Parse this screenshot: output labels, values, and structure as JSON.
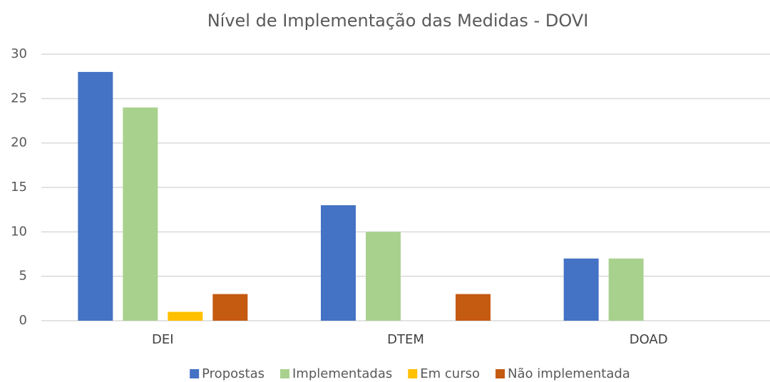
{
  "chart_data": {
    "type": "bar",
    "title": "Nível de Implementação das Medidas - DOVI",
    "categories": [
      "DEI",
      "DTEM",
      "DOAD"
    ],
    "series": [
      {
        "name": "Propostas",
        "color": "#4472c4",
        "values": [
          28,
          13,
          7
        ]
      },
      {
        "name": "Implementadas",
        "color": "#a9d18e",
        "values": [
          24,
          10,
          7
        ]
      },
      {
        "name": "Em curso",
        "color": "#ffc000",
        "values": [
          1,
          0,
          0
        ]
      },
      {
        "name": "Não implementada",
        "color": "#c55a11",
        "values": [
          3,
          3,
          0
        ]
      }
    ],
    "ylim": [
      0,
      30
    ],
    "yticks": [
      0,
      5,
      10,
      15,
      20,
      25,
      30
    ],
    "grid": true,
    "legend": "bottom"
  }
}
